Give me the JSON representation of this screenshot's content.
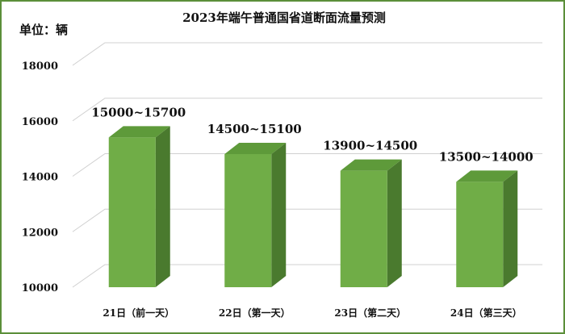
{
  "chart_data": {
    "type": "bar",
    "style": "3d-column",
    "title": "2023年端午普通国省道断面流量预测",
    "unit_label": "单位：辆",
    "categories": [
      "21日（前一天）",
      "22日（第一天）",
      "23日（第二天）",
      "24日（第三天）"
    ],
    "series": [
      {
        "values": [
          15400,
          14800,
          14200,
          13800
        ],
        "data_labels": [
          "15000~15700",
          "14500~15100",
          "13900~14500",
          "13500~14000"
        ]
      }
    ],
    "yticks": [
      "10000",
      "12000",
      "14000",
      "16000",
      "18000"
    ],
    "ylim": [
      10000,
      18000
    ],
    "grid": true,
    "legend": "none",
    "colors": {
      "bar_front": "#70ad47",
      "bar_side": "#4a7a2e",
      "bar_top": "#5e9a3a",
      "gridline": "#d0d0d0",
      "frame": "#5b8f3a"
    }
  }
}
